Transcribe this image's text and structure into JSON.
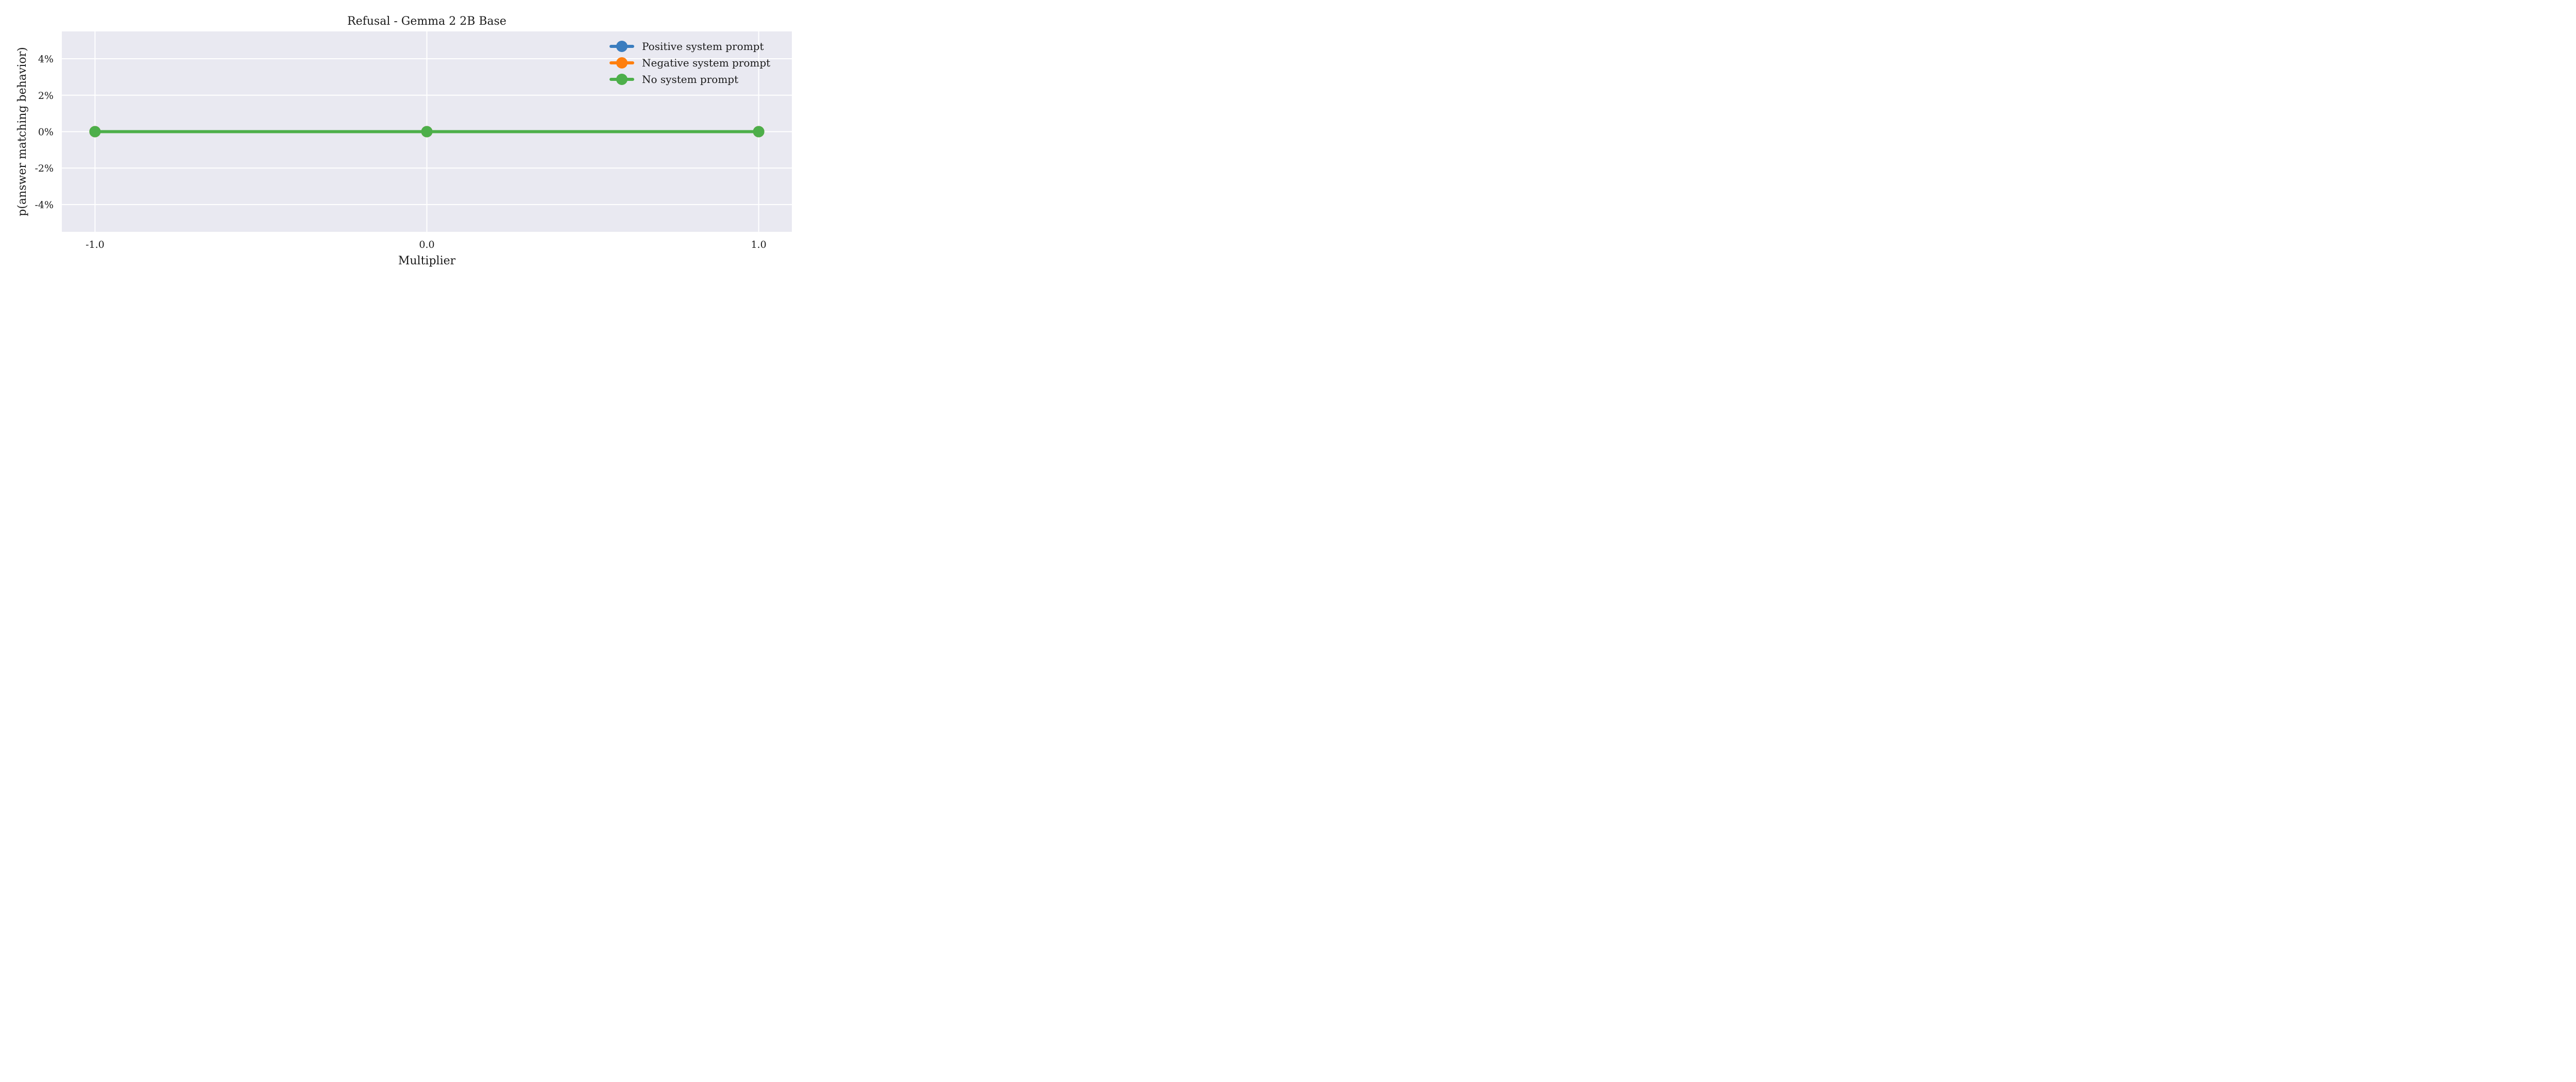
{
  "chart_data": {
    "type": "line",
    "title": "Refusal - Gemma 2 2B Base",
    "xlabel": "Multiplier",
    "ylabel": "p(answer matching behavior)",
    "x": [
      -1.0,
      0.0,
      1.0
    ],
    "x_tick_labels": [
      "-1.0",
      "0.0",
      "1.0"
    ],
    "xlim": [
      -1.1,
      1.1
    ],
    "ylim": [
      -0.055,
      0.055
    ],
    "y_ticks": [
      -0.04,
      -0.02,
      0.0,
      0.02,
      0.04
    ],
    "y_tick_labels": [
      "-4%",
      "-2%",
      "0%",
      "2%",
      "4%"
    ],
    "grid": true,
    "legend_position": "top-right",
    "series": [
      {
        "name": "Positive system prompt",
        "color": "#3a7dbf",
        "values": [
          0.0,
          0.0,
          0.0
        ]
      },
      {
        "name": "Negative system prompt",
        "color": "#ff7f0e",
        "values": [
          0.0,
          0.0,
          0.0
        ]
      },
      {
        "name": "No system prompt",
        "color": "#4daf4a",
        "values": [
          0.0,
          0.0,
          0.0
        ]
      }
    ],
    "plot_background": "#e9e9f1",
    "grid_color": "#ffffff"
  }
}
